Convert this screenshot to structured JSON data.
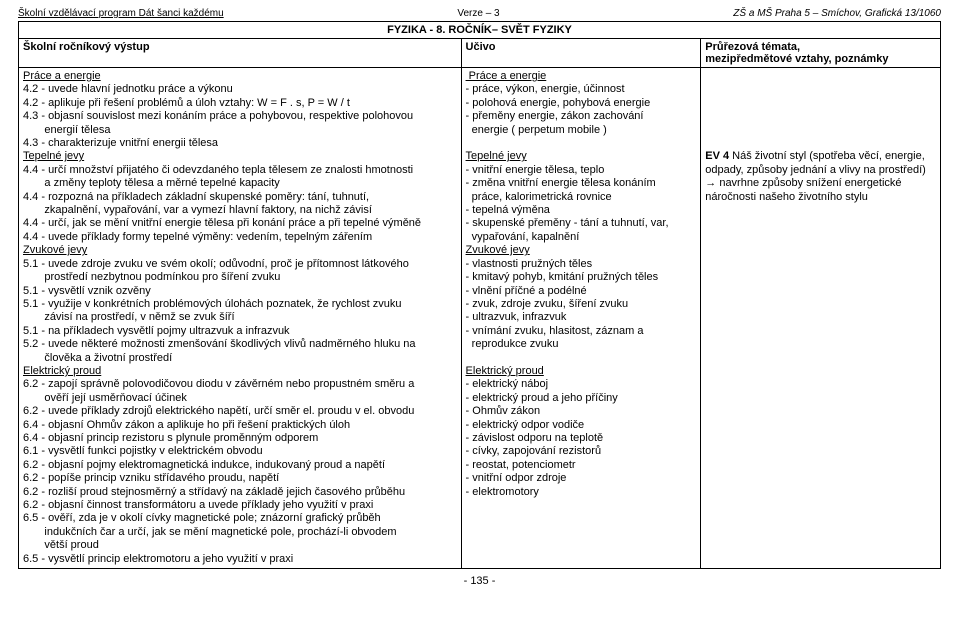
{
  "doc_header": {
    "left": "Školní vzdělávací program Dát šanci každému",
    "center": "Verze – 3",
    "right": "ZŠ a MŠ Praha 5 – Smíchov, Grafická 13/1060"
  },
  "table_title": "FYZIKA - 8. ROČNÍK– SVĚT FYZIKY",
  "col_headers": {
    "c1": "Školní ročníkový výstup",
    "c2": "Učivo",
    "c3a": "Průřezová témata,",
    "c3b": "mezipředmětové vztahy, poznámky"
  },
  "col1_lines": [
    {
      "u": true,
      "t": "Práce a energie"
    },
    {
      "t": "4.2 - uvede hlavní jednotku práce a výkonu"
    },
    {
      "t": "4.2 - aplikuje při řešení problémů a úloh vztahy: W = F . s, P = W / t"
    },
    {
      "t": "4.3 - objasní souvislost mezi konáním práce a pohybovou, respektive polohovou"
    },
    {
      "t": "       energií tělesa"
    },
    {
      "t": "4.3 - charakterizuje vnitřní energii tělesa"
    },
    {
      "u": true,
      "t": "Tepelné jevy"
    },
    {
      "t": "4.4 - určí množství přijatého či odevzdaného tepla tělesem ze znalosti hmotnosti"
    },
    {
      "t": "       a změny teploty tělesa a měrné tepelné kapacity"
    },
    {
      "t": "4.4 - rozpozná na příkladech základní skupenské poměry: tání, tuhnutí,"
    },
    {
      "t": "       zkapalnění, vypařování, var a vymezí hlavní faktory, na nichž závisí"
    },
    {
      "t": "4.4 - určí, jak se mění vnitřní energie tělesa při konání práce a při tepelné výměně"
    },
    {
      "t": "4.4 - uvede příklady formy tepelné výměny: vedením, tepelným zářením"
    },
    {
      "u": true,
      "t": "Zvukové jevy"
    },
    {
      "t": "5.1 - uvede zdroje zvuku ve svém okolí; odůvodní, proč je přítomnost látkového"
    },
    {
      "t": "       prostředí nezbytnou podmínkou pro šíření zvuku"
    },
    {
      "t": "5.1 - vysvětlí vznik ozvěny"
    },
    {
      "t": "5.1 - využije v konkrétních problémových úlohách poznatek, že rychlost zvuku"
    },
    {
      "t": "       závisí na prostředí, v němž se zvuk šíří"
    },
    {
      "t": "5.1 - na příkladech vysvětlí pojmy ultrazvuk a infrazvuk"
    },
    {
      "t": "5.2 - uvede některé možnosti zmenšování škodlivých vlivů nadměrného hluku na"
    },
    {
      "t": "       člověka a životní prostředí"
    },
    {
      "u": true,
      "t": "Elektrický proud"
    },
    {
      "t": "6.2 - zapojí správně polovodičovou diodu v závěrném nebo propustném směru a"
    },
    {
      "t": "       ověří její usměrňovací účinek"
    },
    {
      "t": "6.2 - uvede příklady zdrojů elektrického napětí, určí směr el. proudu v el. obvodu"
    },
    {
      "t": "6.4 - objasní Ohmův zákon a aplikuje ho při řešení praktických úloh"
    },
    {
      "t": "6.4 - objasní princip rezistoru s plynule proměnným odporem"
    },
    {
      "t": "6.1 - vysvětlí funkci pojistky v elektrickém obvodu"
    },
    {
      "t": "6.2 - objasní pojmy elektromagnetická indukce, indukovaný proud a napětí"
    },
    {
      "t": "6.2 - popíše princip vzniku střídavého proudu, napětí"
    },
    {
      "t": "6.2 - rozliší proud stejnosměrný a střídavý na základě jejich časového průběhu"
    },
    {
      "t": "6.2 - objasní činnost transformátoru a uvede příklady jeho využití v praxi"
    },
    {
      "t": "6.5 - ověří, zda je v okolí cívky magnetické pole; znázorní grafický průběh"
    },
    {
      "t": "       indukčních čar a určí, jak se mění magnetické pole, prochází-li obvodem"
    },
    {
      "t": "       větší proud"
    },
    {
      "t": "6.5 - vysvětlí princip elektromotoru a jeho využití v praxi"
    }
  ],
  "col2_lines": [
    {
      "u": true,
      "t": " Práce a energie"
    },
    {
      "t": "- práce, výkon, energie, účinnost"
    },
    {
      "t": "- polohová energie, pohybová energie"
    },
    {
      "t": "- přeměny energie, zákon zachování"
    },
    {
      "t": "  energie ( perpetum mobile )"
    },
    {
      "t": " "
    },
    {
      "u": true,
      "t": "Tepelné jevy"
    },
    {
      "t": "- vnitřní energie tělesa, teplo"
    },
    {
      "t": "- změna vnitřní energie tělesa konáním"
    },
    {
      "t": "  práce, kalorimetrická rovnice"
    },
    {
      "t": "- tepelná výměna"
    },
    {
      "t": "- skupenské přeměny - tání a tuhnutí, var,"
    },
    {
      "t": "  vypařování, kapalnění"
    },
    {
      "u": true,
      "t": "Zvukové jevy"
    },
    {
      "t": "- vlastnosti pružných těles"
    },
    {
      "t": "- kmitavý pohyb, kmitání pružných těles"
    },
    {
      "t": "- vlnění příčné a podélné"
    },
    {
      "t": "- zvuk, zdroje zvuku, šíření zvuku"
    },
    {
      "t": "- ultrazvuk, infrazvuk"
    },
    {
      "t": "- vnímání zvuku, hlasitost, záznam a"
    },
    {
      "t": "  reprodukce zvuku"
    },
    {
      "t": " "
    },
    {
      "u": true,
      "t": "Elektrický proud"
    },
    {
      "t": "- elektrický náboj"
    },
    {
      "t": "- elektrický proud a jeho příčiny"
    },
    {
      "t": "- Ohmův zákon"
    },
    {
      "t": "- elektrický odpor vodiče"
    },
    {
      "t": "- závislost odporu na teplotě"
    },
    {
      "t": "- cívky, zapojování rezistorů"
    },
    {
      "t": "- reostat, potenciometr"
    },
    {
      "t": "- vnitřní odpor zdroje"
    },
    {
      "t": "- elektromotory"
    }
  ],
  "col3_lines": [
    {
      "t": " "
    },
    {
      "t": " "
    },
    {
      "t": " "
    },
    {
      "t": " "
    },
    {
      "t": " "
    },
    {
      "t": " "
    },
    {
      "html": "<b>EV 4</b> Náš životní styl (spotřeba věcí, energie, odpady, způsoby jednání a vlivy na prostředí) → navrhne způsoby snížení energetické náročnosti našeho životního stylu"
    }
  ],
  "page_number": "- 135 -"
}
